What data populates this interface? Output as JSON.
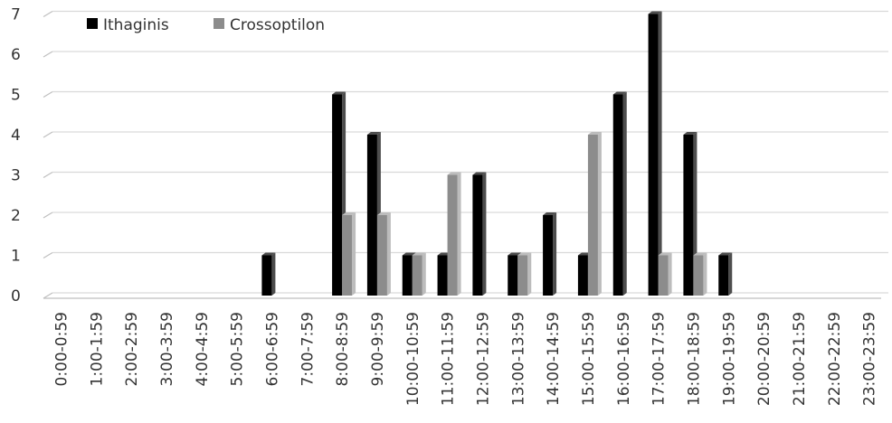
{
  "chart_data": {
    "type": "bar",
    "title": "",
    "xlabel": "",
    "ylabel": "",
    "ylim": [
      0,
      7
    ],
    "yticks": [
      0,
      1,
      2,
      3,
      4,
      5,
      6,
      7
    ],
    "grid": true,
    "legend_position": "top-left",
    "categories": [
      "0:00-0:59",
      "1:00-1:59",
      "2:00-2:59",
      "3:00-3:59",
      "4:00-4:59",
      "5:00-5:59",
      "6:00-6:59",
      "7:00-7:59",
      "8:00-8:59",
      "9:00-9:59",
      "10:00-10:59",
      "11:00-11:59",
      "12:00-12:59",
      "13:00-13:59",
      "14:00-14:59",
      "15:00-15:59",
      "16:00-16:59",
      "17:00-17:59",
      "18:00-18:59",
      "19:00-19:59",
      "20:00-20:59",
      "21:00-21:59",
      "22:00-22:59",
      "23:00-23:59"
    ],
    "series": [
      {
        "name": "Ithaginis",
        "color": "#000000",
        "values": [
          0,
          0,
          0,
          0,
          0,
          0,
          1,
          0,
          5,
          4,
          1,
          1,
          3,
          1,
          2,
          1,
          5,
          7,
          4,
          1,
          0,
          0,
          0,
          0
        ]
      },
      {
        "name": "Crossoptilon",
        "color": "#8c8c8c",
        "values": [
          0,
          0,
          0,
          0,
          0,
          0,
          0,
          0,
          2,
          2,
          1,
          3,
          0,
          1,
          0,
          4,
          0,
          1,
          1,
          0,
          0,
          0,
          0,
          0
        ]
      }
    ]
  }
}
